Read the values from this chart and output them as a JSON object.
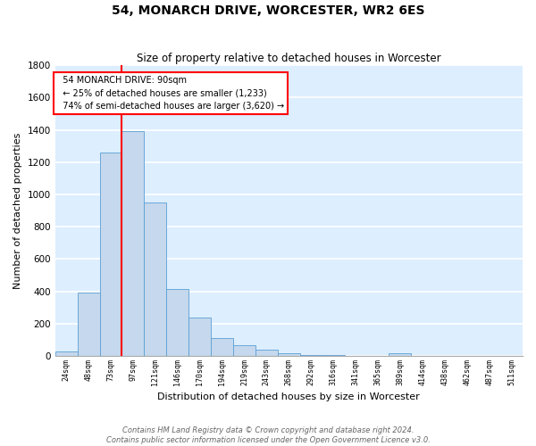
{
  "title": "54, MONARCH DRIVE, WORCESTER, WR2 6ES",
  "subtitle": "Size of property relative to detached houses in Worcester",
  "xlabel": "Distribution of detached houses by size in Worcester",
  "ylabel": "Number of detached properties",
  "bar_color": "#c5d8ed",
  "bar_edge_color": "#5a9fd4",
  "background_color": "#ddeeff",
  "grid_color": "#ffffff",
  "bins": [
    "24sqm",
    "48sqm",
    "73sqm",
    "97sqm",
    "121sqm",
    "146sqm",
    "170sqm",
    "194sqm",
    "219sqm",
    "243sqm",
    "268sqm",
    "292sqm",
    "316sqm",
    "341sqm",
    "365sqm",
    "389sqm",
    "414sqm",
    "438sqm",
    "462sqm",
    "487sqm",
    "511sqm"
  ],
  "values": [
    25,
    390,
    1260,
    1390,
    950,
    415,
    235,
    110,
    65,
    40,
    15,
    5,
    5,
    0,
    0,
    15,
    0,
    0,
    0,
    0,
    0
  ],
  "ylim": [
    0,
    1800
  ],
  "yticks": [
    0,
    200,
    400,
    600,
    800,
    1000,
    1200,
    1400,
    1600,
    1800
  ],
  "red_line_bin_index": 3,
  "annotation_title": "54 MONARCH DRIVE: 90sqm",
  "annotation_line1": "← 25% of detached houses are smaller (1,233)",
  "annotation_line2": "74% of semi-detached houses are larger (3,620) →",
  "footnote1": "Contains HM Land Registry data © Crown copyright and database right 2024.",
  "footnote2": "Contains public sector information licensed under the Open Government Licence v3.0."
}
